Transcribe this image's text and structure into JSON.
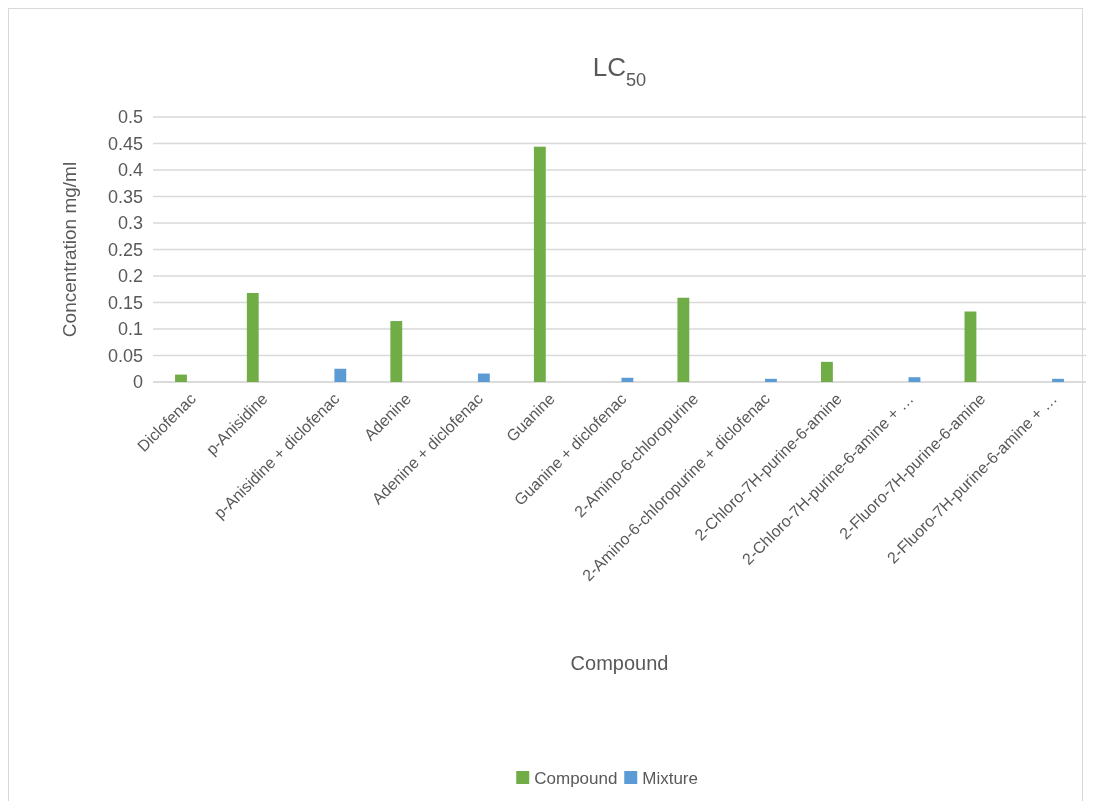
{
  "chart_data": {
    "type": "bar",
    "title": "LC$_{50}$",
    "xlabel": "Compound",
    "ylabel": "Concentration mg/ml",
    "categories": [
      "Diclofenac",
      "p-Anisidine",
      "p-Anisidine + diclofenac",
      "Adenine",
      "Adenine + diclofenac",
      "Guanine",
      "Guanine + diclofenac",
      "2-Amino-6-chloropurine",
      "2-Amino-6-chloropurine + diclofenac",
      "2-Chloro-7H-purine-6-amine",
      "2-Chloro-7H-purine-6-amine + …",
      "2-Fluoro-7H-purine-6-amine",
      "2-Fluoro-7H-purine-6-amine + …"
    ],
    "series": [
      {
        "name": "Compound",
        "color": "#70ad47",
        "values": [
          0.014,
          0.168,
          null,
          0.115,
          null,
          0.444,
          null,
          0.159,
          null,
          0.038,
          null,
          0.133,
          null
        ]
      },
      {
        "name": "Mixture",
        "color": "#5b9bd5",
        "values": [
          null,
          null,
          0.025,
          null,
          0.016,
          null,
          0.008,
          null,
          0.006,
          null,
          0.009,
          null,
          0.006
        ]
      }
    ],
    "ylim": [
      0,
      0.5
    ],
    "yticks": [
      0,
      0.05,
      0.1,
      0.15,
      0.2,
      0.25,
      0.3,
      0.35,
      0.4,
      0.45,
      0.5
    ],
    "grid": "y",
    "legend": "bottom"
  }
}
